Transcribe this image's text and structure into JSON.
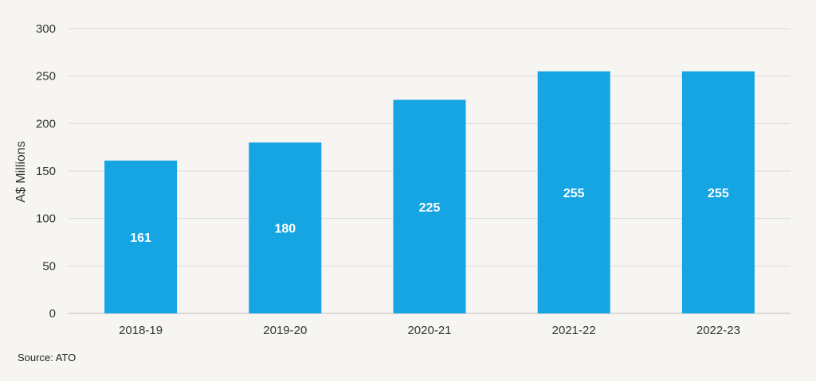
{
  "chart_data": {
    "type": "bar",
    "categories": [
      "2018-19",
      "2019-20",
      "2020-21",
      "2021-22",
      "2022-23"
    ],
    "values": [
      161,
      180,
      225,
      255,
      255
    ],
    "data_labels": [
      "161",
      "180",
      "225",
      "255",
      "255"
    ],
    "ylabel": "A$ Millions",
    "ylim": [
      0,
      300
    ],
    "yticks": [
      0,
      50,
      100,
      150,
      200,
      250,
      300
    ],
    "grid": true,
    "bar_color": "#14a5e2",
    "grid_color": "#d9d9d9",
    "label_color": "#ffffff"
  },
  "source": "Source: ATO"
}
